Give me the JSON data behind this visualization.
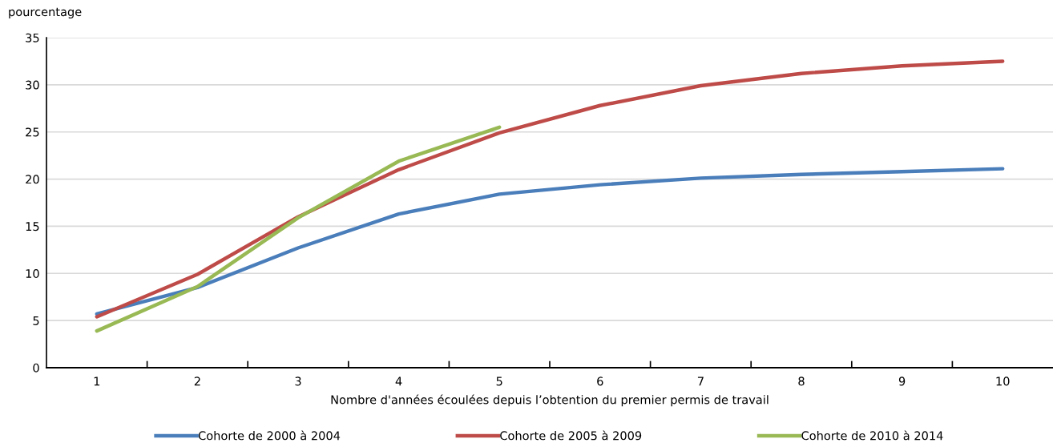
{
  "chart_data": {
    "type": "line",
    "ylabel": "pourcentage",
    "xlabel": "Nombre d'années écoulées depuis l’obtention du premier permis de travail",
    "categories": [
      "1",
      "2",
      "3",
      "4",
      "5",
      "6",
      "7",
      "8",
      "9",
      "10"
    ],
    "series": [
      {
        "name": "Cohorte de 2000 à 2004",
        "color": "#4a7ebb",
        "values": [
          5.7,
          8.5,
          12.7,
          16.3,
          18.4,
          19.4,
          20.1,
          20.5,
          20.8,
          21.1
        ]
      },
      {
        "name": "Cohorte de 2005 à 2009",
        "color": "#be4b48",
        "values": [
          5.4,
          9.9,
          16.0,
          21.0,
          24.9,
          27.8,
          29.9,
          31.2,
          32.0,
          32.5
        ]
      },
      {
        "name": "Cohorte de 2010 à 2014",
        "color": "#98b954",
        "values": [
          3.9,
          8.6,
          15.9,
          21.9,
          25.5,
          null,
          null,
          null,
          null,
          null
        ]
      }
    ],
    "ylim": [
      0,
      35
    ],
    "yticks": [
      0,
      5,
      10,
      15,
      20,
      25,
      30,
      35
    ],
    "grid": "y",
    "legend": "bottom",
    "marker": "none",
    "line_style": "solid"
  }
}
